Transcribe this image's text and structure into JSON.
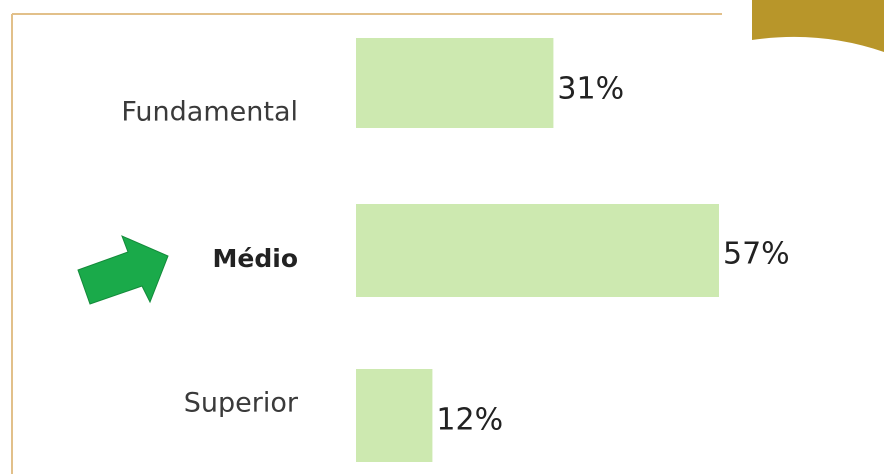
{
  "chart_data": {
    "type": "bar",
    "orientation": "horizontal",
    "categories": [
      "Fundamental",
      "Médio",
      "Superior"
    ],
    "values": [
      31,
      57,
      12
    ],
    "value_labels": [
      "31%",
      "57%",
      "12%"
    ],
    "color": "#cde9b0"
  }
}
